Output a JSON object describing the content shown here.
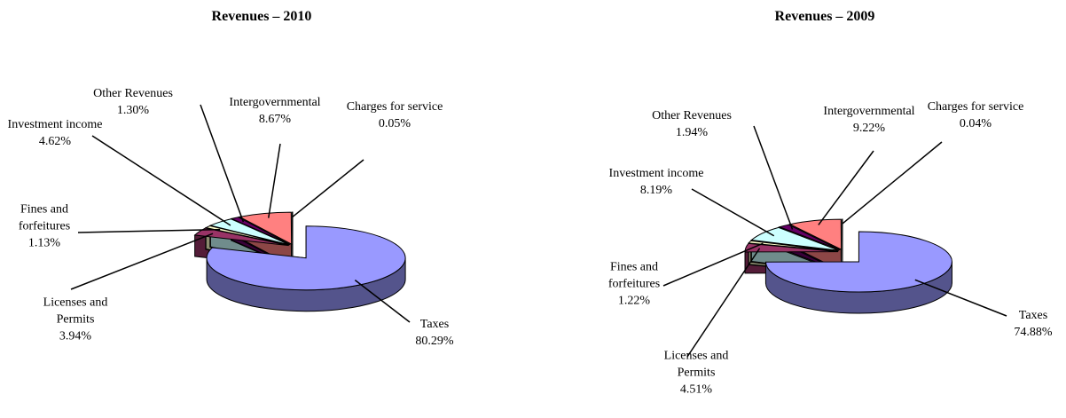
{
  "chart_data": [
    {
      "type": "pie",
      "title": "Revenues – 2010",
      "categories": [
        "Taxes",
        "Licenses and Permits",
        "Fines and forfeitures",
        "Investment income",
        "Other Revenues",
        "Intergovernmental",
        "Charges for service"
      ],
      "values": [
        80.29,
        3.94,
        1.13,
        4.62,
        1.3,
        8.67,
        0.05
      ],
      "value_labels": [
        "80.29%",
        "3.94%",
        "1.13%",
        "4.62%",
        "1.30%",
        "8.67%",
        "0.05%"
      ],
      "colors": [
        "#9999ff",
        "#993366",
        "#ffffcc",
        "#ccffff",
        "#660066",
        "#ff8080",
        "#0066cc"
      ]
    },
    {
      "type": "pie",
      "title": "Revenues – 2009",
      "categories": [
        "Taxes",
        "Licenses and Permits",
        "Fines and forfeitures",
        "Investment income",
        "Other Revenues",
        "Intergovernmental",
        "Charges for service"
      ],
      "values": [
        74.88,
        4.51,
        1.22,
        8.19,
        1.94,
        9.22,
        0.04
      ],
      "value_labels": [
        "74.88%",
        "4.51%",
        "1.22%",
        "8.19%",
        "1.94%",
        "9.22%",
        "0.04%"
      ],
      "colors": [
        "#9999ff",
        "#993366",
        "#ffffcc",
        "#ccffff",
        "#660066",
        "#ff8080",
        "#0066cc"
      ]
    }
  ]
}
